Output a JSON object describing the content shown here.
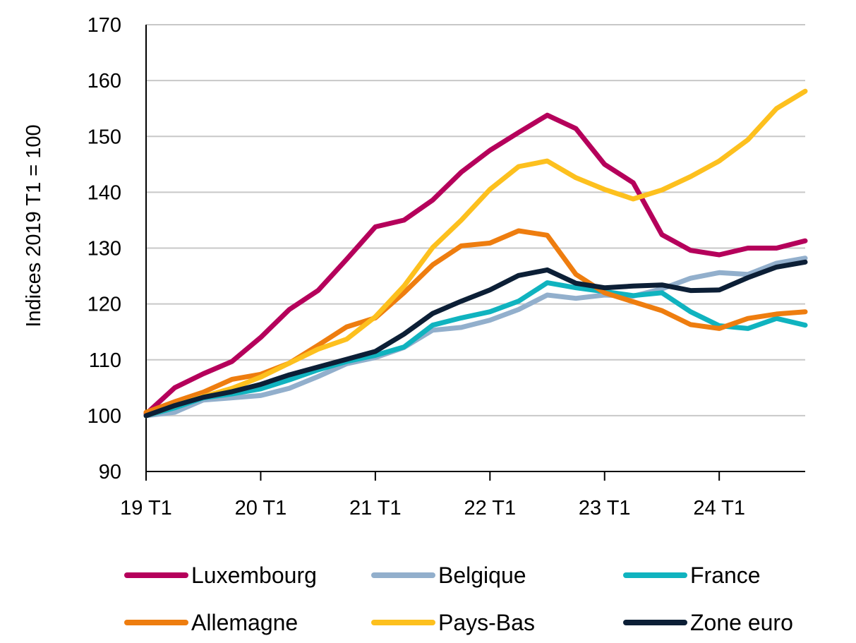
{
  "chart_data": {
    "type": "line",
    "ylabel": "Indices 2019 T1 = 100",
    "xlabel": "",
    "ylim": [
      90,
      170
    ],
    "yticks": [
      90,
      100,
      110,
      120,
      130,
      140,
      150,
      160,
      170
    ],
    "x": [
      "19 T1",
      "19 T2",
      "19 T3",
      "19 T4",
      "20 T1",
      "20 T2",
      "20 T3",
      "20 T4",
      "21 T1",
      "21 T2",
      "21 T3",
      "21 T4",
      "22 T1",
      "22 T2",
      "22 T3",
      "22 T4",
      "23 T1",
      "23 T2",
      "23 T3",
      "23 T4",
      "24 T1",
      "24 T2",
      "24 T3",
      "24 T4"
    ],
    "xtick_labels": [
      "19 T1",
      "20 T1",
      "21 T1",
      "22 T1",
      "23 T1",
      "24 T1"
    ],
    "grid": "horizontal",
    "legend_position": "bottom",
    "series": [
      {
        "name": "Luxembourg",
        "color": "#b5005b",
        "values": [
          100.3,
          105.0,
          107.5,
          109.7,
          114.0,
          119.0,
          122.4,
          128.0,
          133.8,
          135.0,
          138.6,
          143.6,
          147.5,
          150.7,
          153.8,
          151.4,
          145.0,
          141.7,
          132.4,
          129.6,
          128.8,
          130.0,
          130.0,
          131.3
        ]
      },
      {
        "name": "Belgique",
        "color": "#92afcc",
        "values": [
          100.0,
          100.6,
          102.8,
          103.2,
          103.6,
          104.9,
          107.0,
          109.3,
          110.4,
          112.2,
          115.3,
          115.8,
          117.1,
          119.0,
          121.6,
          121.0,
          121.6,
          121.4,
          122.7,
          124.6,
          125.6,
          125.3,
          127.3,
          128.2
        ]
      },
      {
        "name": "France",
        "color": "#10b3bf",
        "values": [
          100.0,
          101.4,
          103.2,
          103.9,
          104.8,
          106.4,
          108.2,
          109.7,
          110.8,
          112.3,
          116.2,
          117.5,
          118.6,
          120.5,
          123.8,
          122.9,
          122.2,
          121.5,
          122.0,
          118.6,
          116.1,
          115.6,
          117.4,
          116.2
        ]
      },
      {
        "name": "Allemagne",
        "color": "#ee7d0f",
        "values": [
          100.6,
          102.5,
          104.2,
          106.5,
          107.4,
          109.4,
          112.6,
          115.9,
          117.5,
          122.0,
          127.0,
          130.4,
          130.9,
          133.1,
          132.3,
          125.3,
          122.0,
          120.4,
          118.8,
          116.3,
          115.6,
          117.4,
          118.2,
          118.6
        ]
      },
      {
        "name": "Pays-Bas",
        "color": "#fdc01e",
        "values": [
          100.0,
          101.8,
          103.4,
          104.9,
          106.9,
          109.4,
          111.9,
          113.7,
          117.7,
          123.2,
          130.1,
          135.0,
          140.5,
          144.6,
          145.6,
          142.6,
          140.5,
          138.8,
          140.4,
          142.8,
          145.6,
          149.4,
          155.0,
          158.1
        ]
      },
      {
        "name": "Zone euro",
        "color": "#0c1f36",
        "values": [
          100.0,
          101.8,
          103.3,
          104.3,
          105.6,
          107.3,
          108.7,
          110.1,
          111.5,
          114.6,
          118.3,
          120.5,
          122.5,
          125.1,
          126.1,
          123.7,
          122.9,
          123.2,
          123.4,
          122.4,
          122.5,
          124.7,
          126.6,
          127.5
        ]
      }
    ]
  }
}
